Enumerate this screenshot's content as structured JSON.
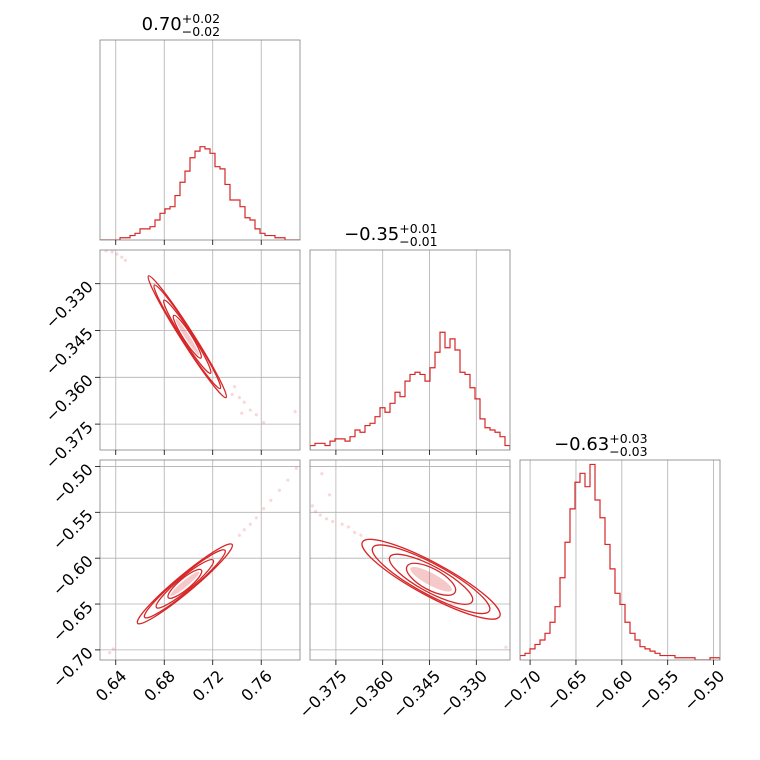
{
  "chart_data": {
    "type": "corner",
    "color": "#d62728",
    "parameters": [
      {
        "title": {
          "median": "0.70",
          "plus": "+0.02",
          "minus": "−0.02"
        },
        "range": [
          0.627,
          0.792
        ],
        "ticks": [
          0.64,
          0.68,
          0.72,
          0.76
        ],
        "tick_labels": [
          "0.64",
          "0.68",
          "0.72",
          "0.76"
        ]
      },
      {
        "title": {
          "median": "−0.35",
          "plus": "+0.01",
          "minus": "−0.01"
        },
        "range": [
          -0.3833,
          -0.3192
        ],
        "ticks": [
          -0.375,
          -0.36,
          -0.345,
          -0.33
        ],
        "tick_labels": [
          "−0.375",
          "−0.360",
          "−0.345",
          "−0.330"
        ]
      },
      {
        "title": {
          "median": "−0.63",
          "plus": "+0.03",
          "minus": "−0.03"
        },
        "range": [
          -0.711,
          -0.493
        ],
        "ticks": [
          -0.7,
          -0.65,
          -0.6,
          -0.55,
          -0.5
        ],
        "tick_labels": [
          "−0.70",
          "−0.65",
          "−0.60",
          "−0.55",
          "−0.50"
        ]
      }
    ],
    "histograms": [
      {
        "parameter": 0,
        "max_count": 90,
        "counts": [
          0,
          0,
          0,
          0,
          1,
          1,
          2,
          3,
          5,
          5,
          6,
          9,
          12,
          14,
          15,
          20,
          26,
          31,
          37,
          40,
          42,
          41,
          39,
          33,
          32,
          25,
          18,
          18,
          15,
          10,
          9,
          5,
          3,
          2,
          2,
          1,
          1,
          0,
          0,
          0
        ]
      },
      {
        "parameter": 1,
        "max_count": 90,
        "counts": [
          2,
          3,
          3,
          2,
          4,
          5,
          5,
          4,
          6,
          9,
          8,
          11,
          12,
          15,
          19,
          17,
          21,
          26,
          24,
          31,
          34,
          35,
          34,
          31,
          37,
          44,
          53,
          46,
          50,
          45,
          35,
          34,
          28,
          23,
          14,
          10,
          9,
          8,
          6,
          2
        ]
      },
      {
        "parameter": 2,
        "max_count": 90,
        "counts": [
          2,
          3,
          5,
          7,
          9,
          12,
          17,
          24,
          37,
          53,
          68,
          80,
          84,
          78,
          88,
          72,
          64,
          52,
          41,
          30,
          25,
          17,
          12,
          9,
          6,
          5,
          4,
          3,
          2,
          2,
          2,
          1,
          1,
          1,
          1,
          0,
          0,
          0,
          1,
          1
        ]
      }
    ],
    "pairs": [
      {
        "x": 0,
        "y": 1,
        "center": [
          0.699,
          -0.347
        ],
        "major_axis_end": [
          0.731,
          -0.3665
        ],
        "minor_half_width": 0.0012,
        "levels": [
          0.35,
          0.6,
          0.85,
          1.0
        ],
        "sparse_points": [
          [
            0.632,
            -0.3195
          ],
          [
            0.637,
            -0.3198
          ],
          [
            0.641,
            -0.3205
          ],
          [
            0.645,
            -0.3215
          ],
          [
            0.648,
            -0.3225
          ],
          [
            0.738,
            -0.363
          ],
          [
            0.742,
            -0.3665
          ],
          [
            0.746,
            -0.368
          ],
          [
            0.751,
            -0.3705
          ],
          [
            0.756,
            -0.372
          ],
          [
            0.762,
            -0.3745
          ],
          [
            0.736,
            -0.3655
          ],
          [
            0.744,
            -0.3715
          ],
          [
            0.788,
            -0.371
          ]
        ]
      },
      {
        "x": 0,
        "y": 2,
        "center": [
          0.697,
          -0.628
        ],
        "major_axis_end": [
          0.736,
          -0.585
        ],
        "minor_half_width": 0.0016,
        "levels": [
          0.35,
          0.6,
          0.85,
          1.0
        ],
        "sparse_points": [
          [
            0.635,
            -0.703
          ],
          [
            0.638,
            -0.699
          ],
          [
            0.742,
            -0.575
          ],
          [
            0.746,
            -0.569
          ],
          [
            0.751,
            -0.563
          ],
          [
            0.756,
            -0.556
          ],
          [
            0.762,
            -0.546
          ],
          [
            0.768,
            -0.537
          ],
          [
            0.775,
            -0.526
          ],
          [
            0.782,
            -0.515
          ],
          [
            0.789,
            -0.502
          ]
        ]
      },
      {
        "x": 1,
        "y": 2,
        "center": [
          -0.3445,
          -0.623
        ],
        "major_axis_end": [
          -0.3225,
          -0.6635
        ],
        "minor_half_width": 0.0012,
        "levels": [
          0.35,
          0.6,
          0.85,
          1.0
        ],
        "sparse_points": [
          [
            -0.3825,
            -0.543
          ],
          [
            -0.3815,
            -0.549
          ],
          [
            -0.38,
            -0.553
          ],
          [
            -0.378,
            -0.557
          ],
          [
            -0.376,
            -0.56
          ],
          [
            -0.373,
            -0.563
          ],
          [
            -0.371,
            -0.566
          ],
          [
            -0.369,
            -0.572
          ],
          [
            -0.367,
            -0.575
          ],
          [
            -0.3795,
            -0.508
          ],
          [
            -0.377,
            -0.531
          ],
          [
            -0.3205,
            -0.697
          ]
        ]
      }
    ],
    "grid": true,
    "legend": "none"
  }
}
